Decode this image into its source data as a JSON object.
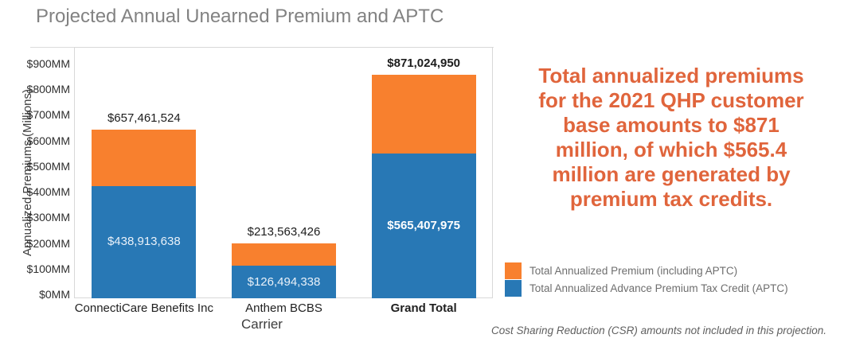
{
  "title": "Projected Annual Unearned Premium and APTC",
  "chart_data": {
    "type": "bar",
    "stacked": true,
    "title": "Projected Annual Unearned Premium and APTC",
    "xlabel": "Carrier",
    "ylabel": "Annualized Premiums (Millions)",
    "ylim_mm": [
      0,
      900
    ],
    "ytick_values_mm": [
      0,
      100,
      200,
      300,
      400,
      500,
      600,
      700,
      800,
      900
    ],
    "ytick_labels": [
      "$0MM",
      "$100MM",
      "$200MM",
      "$300MM",
      "$400MM",
      "$500MM",
      "$600MM",
      "$700MM",
      "$800MM",
      "$900MM"
    ],
    "grid": false,
    "categories": [
      "ConnectiCare Benefits Inc",
      "Anthem BCBS",
      "Grand Total"
    ],
    "emphasized_category": "Grand Total",
    "series": [
      {
        "name": "Total Annualized Advance Premium Tax Credit (APTC)",
        "role": "aptc",
        "color": "#2878B5",
        "values": [
          438913638,
          126494338,
          565407975
        ],
        "labels": [
          "$438,913,638",
          "$126,494,338",
          "$565,407,975"
        ]
      },
      {
        "name": "Total Annualized Premium (including APTC)",
        "role": "total",
        "color": "#F8802E",
        "values": [
          657461524,
          213563426,
          871024950
        ],
        "labels": [
          "$657,461,524",
          "$213,563,426",
          "$871,024,950"
        ]
      }
    ],
    "legend": [
      {
        "label": "Total Annualized Premium (including APTC)",
        "color": "#F8802E"
      },
      {
        "label": "Total Annualized Advance Premium Tax Credit (APTC)",
        "color": "#2878B5"
      }
    ],
    "legend_position": "right-bottom"
  },
  "annotation": {
    "text": "Total annualized premiums for the 2021 QHP customer base amounts to $871 million, of which $565.4 million are generated by premium tax credits.",
    "lines": [
      "Total annualized premiums",
      "for the 2021 QHP customer",
      "base amounts to $871",
      "million, of which $565.4",
      "million are generated by",
      "premium tax credits."
    ],
    "color": "#E0653C"
  },
  "footnote": "Cost Sharing Reduction (CSR) amounts not included in this projection."
}
